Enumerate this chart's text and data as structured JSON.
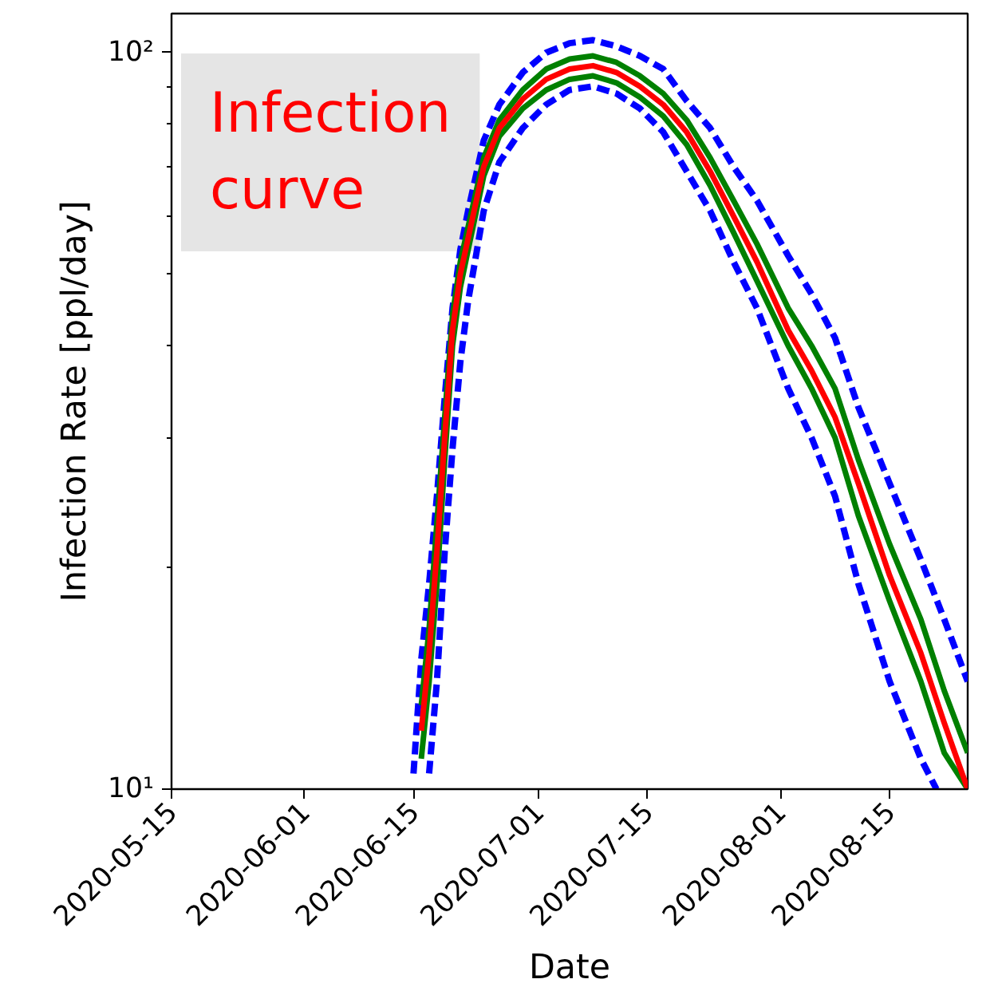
{
  "chart_data": {
    "type": "line",
    "xlabel": "Date",
    "ylabel": "Infection Rate [ppl/day]",
    "annotations": [
      "Infection\ncurve"
    ],
    "log": "y",
    "grid": false,
    "marker": "none",
    "xlim": [
      "2020-05-15",
      "2020-08-25"
    ],
    "xticks": [
      "2020-05-15",
      "2020-06-01",
      "2020-06-15",
      "2020-07-01",
      "2020-07-15",
      "2020-08-01",
      "2020-08-15"
    ],
    "ylim": [
      10,
      113
    ],
    "yticks": [
      {
        "value": 10,
        "label": "10¹"
      },
      {
        "value": 20,
        "label": null
      },
      {
        "value": 30,
        "label": null
      },
      {
        "value": 40,
        "label": null
      },
      {
        "value": 50,
        "label": null
      },
      {
        "value": 60,
        "label": null
      },
      {
        "value": 70,
        "label": null
      },
      {
        "value": 80,
        "label": null
      },
      {
        "value": 90,
        "label": null
      },
      {
        "value": 100,
        "label": "10²"
      }
    ],
    "x": [
      "2020-06-16",
      "2020-06-17",
      "2020-06-18",
      "2020-06-19",
      "2020-06-20",
      "2020-06-21",
      "2020-06-22",
      "2020-06-24",
      "2020-06-26",
      "2020-06-29",
      "2020-07-02",
      "2020-07-05",
      "2020-07-08",
      "2020-07-11",
      "2020-07-14",
      "2020-07-17",
      "2020-07-20",
      "2020-07-23",
      "2020-07-26",
      "2020-07-29",
      "2020-08-02",
      "2020-08-05",
      "2020-08-08",
      "2020-08-11",
      "2020-08-15",
      "2020-08-19",
      "2020-08-22",
      "2020-08-25"
    ],
    "series": [
      {
        "color": "#0000ff",
        "line_style": "dashed",
        "x": [
          "2020-06-15",
          "2020-06-16",
          "2020-06-17",
          "2020-06-18",
          "2020-06-19",
          "2020-06-20",
          "2020-06-21",
          "2020-06-22",
          "2020-06-24",
          "2020-06-26",
          "2020-06-29",
          "2020-07-02",
          "2020-07-05",
          "2020-07-08",
          "2020-07-11",
          "2020-07-14",
          "2020-07-17",
          "2020-07-20",
          "2020-07-23",
          "2020-07-26",
          "2020-07-29",
          "2020-08-02",
          "2020-08-05",
          "2020-08-08",
          "2020-08-11",
          "2020-08-15",
          "2020-08-19",
          "2020-08-22",
          "2020-08-25"
        ],
        "values": [
          10.5,
          15,
          19,
          25,
          34,
          45,
          54,
          61,
          76,
          85,
          94,
          100,
          103,
          104,
          102,
          99,
          95,
          86,
          79,
          70,
          63,
          53,
          47,
          41,
          33,
          26,
          20.5,
          17,
          14
        ]
      },
      {
        "color": "#0000ff",
        "line_style": "dashed",
        "x": [
          "2020-06-17",
          "2020-06-18",
          "2020-06-19",
          "2020-06-20",
          "2020-06-21",
          "2020-06-22",
          "2020-06-24",
          "2020-06-26",
          "2020-06-29",
          "2020-07-02",
          "2020-07-05",
          "2020-07-08",
          "2020-07-11",
          "2020-07-14",
          "2020-07-17",
          "2020-07-20",
          "2020-07-23",
          "2020-07-26",
          "2020-07-29",
          "2020-08-02",
          "2020-08-05",
          "2020-08-08",
          "2020-08-11",
          "2020-08-15",
          "2020-08-19",
          "2020-08-21"
        ],
        "values": [
          10.5,
          14,
          21,
          29,
          38,
          46,
          61,
          71,
          79,
          85,
          89,
          90,
          88,
          84,
          78,
          69,
          61,
          52,
          45,
          35,
          30,
          25,
          19,
          14,
          11,
          10
        ]
      },
      {
        "color": "#008000",
        "line_style": "solid",
        "values": [
          13,
          16.5,
          23,
          32,
          44,
          52,
          58,
          72,
          81,
          89,
          95,
          98,
          99,
          97,
          93,
          88,
          81,
          72,
          63,
          55,
          45,
          40,
          35,
          28,
          21.5,
          17,
          13.6,
          11.2
        ]
      },
      {
        "color": "#008000",
        "line_style": "solid",
        "values": [
          11,
          14,
          19,
          28,
          40,
          48,
          54,
          68,
          77,
          84,
          89,
          92,
          93,
          91,
          87,
          82,
          75,
          66,
          57,
          49,
          40,
          35,
          30,
          23.5,
          18,
          14,
          11.2,
          10
        ]
      },
      {
        "color": "#ff0000",
        "line_style": "solid",
        "values": [
          12,
          15.3,
          21,
          30,
          42,
          50,
          56,
          70,
          79,
          86.5,
          92,
          95,
          96,
          94,
          90,
          85,
          78,
          69,
          60,
          52,
          42,
          37,
          32,
          26,
          19.5,
          15.3,
          12.3,
          10
        ]
      }
    ]
  }
}
